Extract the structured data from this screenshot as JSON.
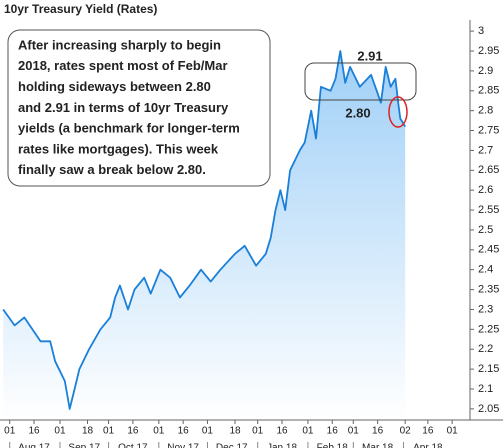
{
  "chart_data": {
    "type": "line",
    "title": "10yr Treasury Yield (Rates)",
    "x": [
      "2017-07-28",
      "2017-08-04",
      "2017-08-10",
      "2017-08-20",
      "2017-08-26",
      "2017-08-29",
      "2017-09-04",
      "2017-09-07",
      "2017-09-10",
      "2017-09-13",
      "2017-09-19",
      "2017-09-26",
      "2017-10-02",
      "2017-10-05",
      "2017-10-08",
      "2017-10-13",
      "2017-10-17",
      "2017-10-23",
      "2017-10-27",
      "2017-11-02",
      "2017-11-08",
      "2017-11-14",
      "2017-11-20",
      "2017-11-27",
      "2017-12-03",
      "2017-12-09",
      "2017-12-18",
      "2017-12-24",
      "2017-12-31",
      "2018-01-06",
      "2018-01-09",
      "2018-01-12",
      "2018-01-15",
      "2018-01-18",
      "2018-01-21",
      "2018-01-27",
      "2018-01-30",
      "2018-02-03",
      "2018-02-06",
      "2018-02-09",
      "2018-02-15",
      "2018-02-18",
      "2018-02-21",
      "2018-02-24",
      "2018-02-27",
      "2018-03-05",
      "2018-03-12",
      "2018-03-18",
      "2018-03-21",
      "2018-03-24",
      "2018-03-27",
      "2018-03-29",
      "2018-03-30",
      "2018-04-02"
    ],
    "series": [
      {
        "name": "10yr Treasury Yield",
        "color": "#1a7fd9",
        "values": [
          2.3,
          2.26,
          2.28,
          2.22,
          2.22,
          2.17,
          2.12,
          2.05,
          2.1,
          2.15,
          2.2,
          2.25,
          2.28,
          2.33,
          2.36,
          2.3,
          2.35,
          2.38,
          2.34,
          2.4,
          2.38,
          2.33,
          2.36,
          2.4,
          2.37,
          2.4,
          2.44,
          2.46,
          2.41,
          2.44,
          2.48,
          2.55,
          2.6,
          2.55,
          2.65,
          2.7,
          2.72,
          2.8,
          2.73,
          2.86,
          2.85,
          2.88,
          2.95,
          2.87,
          2.91,
          2.86,
          2.89,
          2.82,
          2.91,
          2.86,
          2.88,
          2.81,
          2.78,
          2.76
        ]
      }
    ],
    "xlim": [
      "2017-07-26",
      "2018-05-12"
    ],
    "ylim": [
      2.022,
      3.028
    ],
    "yticks": [
      2.05,
      2.1,
      2.15,
      2.2,
      2.25,
      2.3,
      2.35,
      2.4,
      2.45,
      2.5,
      2.55,
      2.6,
      2.65,
      2.7,
      2.75,
      2.8,
      2.85,
      2.9,
      2.95,
      3
    ],
    "xticks": [
      {
        "value": "2017-08-01",
        "label": "01"
      },
      {
        "value": "2017-08-16",
        "label": "16"
      },
      {
        "value": "2017-09-01",
        "label": "01"
      },
      {
        "value": "2017-09-18",
        "label": "18"
      },
      {
        "value": "2017-10-01",
        "label": "01"
      },
      {
        "value": "2017-10-16",
        "label": "16"
      },
      {
        "value": "2017-11-01",
        "label": "01"
      },
      {
        "value": "2017-11-16",
        "label": "16"
      },
      {
        "value": "2017-12-01",
        "label": "01"
      },
      {
        "value": "2017-12-18",
        "label": "18"
      },
      {
        "value": "2018-01-01",
        "label": "01"
      },
      {
        "value": "2018-01-16",
        "label": "16"
      },
      {
        "value": "2018-02-01",
        "label": "01"
      },
      {
        "value": "2018-02-16",
        "label": "16"
      },
      {
        "value": "2018-03-01",
        "label": "01"
      },
      {
        "value": "2018-03-16",
        "label": "16"
      },
      {
        "value": "2018-04-02",
        "label": "02"
      },
      {
        "value": "2018-04-16",
        "label": "16"
      },
      {
        "value": "2018-05-01",
        "label": "01"
      }
    ],
    "months": [
      {
        "value": "2017-08-01",
        "label": "Aug 17"
      },
      {
        "value": "2017-09-01",
        "label": "Sep 17"
      },
      {
        "value": "2017-10-01",
        "label": "Oct 17"
      },
      {
        "value": "2017-11-01",
        "label": "Nov 17"
      },
      {
        "value": "2017-12-01",
        "label": "Dec 17"
      },
      {
        "value": "2018-01-01",
        "label": "Jan 18"
      },
      {
        "value": "2018-02-01",
        "label": "Feb 18"
      },
      {
        "value": "2018-03-01",
        "label": "Mar 18"
      },
      {
        "value": "2018-04-01",
        "label": "Apr 18"
      }
    ],
    "annotation": [
      "After increasing sharply to begin",
      "2018, rates spent most of Feb/Mar",
      "holding sideways between 2.80",
      "and 2.91 in terms of 10yr Treasury",
      "yields (a benchmark for longer-term",
      "rates like mortgages).  This week",
      "finally saw a break below 2.80."
    ],
    "range_high_label": "2.91",
    "range_low_label": "2.80",
    "grid": false
  }
}
